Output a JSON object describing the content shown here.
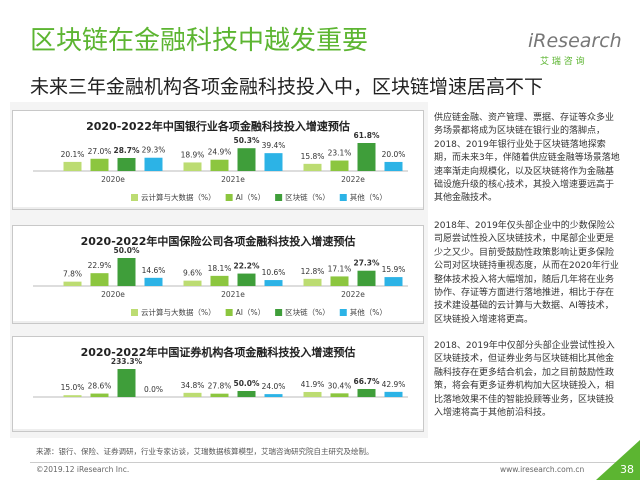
{
  "header": {
    "title": "区块链在金融科技中越发重要",
    "subtitle": "未来三年金融机构各项金融科技投入中，区块链增速居高不下",
    "logo": "iResearch",
    "logo_cn": "艾 瑞 咨 询"
  },
  "chart_data": [
    {
      "type": "bar",
      "title": "2020-2022年中国银行业各项金融科技投入增速预估",
      "categories": [
        "2020e",
        "2021e",
        "2022e"
      ],
      "legend": "bottom",
      "series": [
        {
          "name": "云计算与大数据（%）",
          "color": "#bcdc72",
          "values": [
            20.1,
            18.9,
            15.8
          ],
          "value_labels": [
            "20.1%",
            "18.9%",
            "15.8%"
          ]
        },
        {
          "name": "AI（%）",
          "color": "#8cc63f",
          "values": [
            27.0,
            24.9,
            23.1
          ],
          "value_labels": [
            "27.0%",
            "24.9%",
            "23.1%"
          ]
        },
        {
          "name": "区块链（%）",
          "color": "#3f9e3a",
          "values": [
            28.7,
            50.3,
            61.8
          ],
          "value_labels": [
            "28.7%",
            "50.3%",
            "61.8%"
          ]
        },
        {
          "name": "其他（%）",
          "color": "#2cb3e6",
          "values": [
            29.3,
            39.4,
            20.0
          ],
          "value_labels": [
            "29.3%",
            "39.4%",
            "20.0%"
          ]
        }
      ]
    },
    {
      "type": "bar",
      "title": "2020-2022年中国保险公司各项金融科技投入增速预估",
      "categories": [
        "2020e",
        "2021e",
        "2022e"
      ],
      "legend": "bottom",
      "series": [
        {
          "name": "云计算与大数据（%）",
          "color": "#bcdc72",
          "values": [
            7.8,
            9.6,
            12.8
          ],
          "value_labels": [
            "7.8%",
            "9.6%",
            "12.8%"
          ]
        },
        {
          "name": "AI（%）",
          "color": "#8cc63f",
          "values": [
            22.9,
            18.1,
            17.1
          ],
          "value_labels": [
            "22.9%",
            "18.1%",
            "17.1%"
          ]
        },
        {
          "name": "区块链（%）",
          "color": "#3f9e3a",
          "values": [
            50.0,
            22.2,
            27.3
          ],
          "value_labels": [
            "50.0%",
            "22.2%",
            "27.3%"
          ]
        },
        {
          "name": "其他（%）",
          "color": "#2cb3e6",
          "values": [
            14.6,
            10.6,
            15.9
          ],
          "value_labels": [
            "14.6%",
            "10.6%",
            "15.9%"
          ]
        }
      ]
    },
    {
      "type": "bar",
      "title": "2020-2022年中国证券机构各项金融科技投入增速预估",
      "series": [
        {
          "color": "#bcdc72",
          "values": [
            15.0,
            34.8,
            41.9
          ],
          "value_labels": [
            "15.0%",
            "34.8%",
            "41.9%"
          ]
        },
        {
          "color": "#8cc63f",
          "values": [
            28.6,
            27.8,
            30.4
          ],
          "value_labels": [
            "28.6%",
            "27.8%",
            "30.4%"
          ]
        },
        {
          "color": "#3f9e3a",
          "values": [
            233.3,
            50.0,
            66.7
          ],
          "value_labels": [
            "233.3%",
            "50.0%",
            "66.7%"
          ]
        },
        {
          "color": "#2cb3e6",
          "values": [
            0.0,
            24.0,
            42.9
          ],
          "value_labels": [
            "0.0%",
            "24.0%",
            "42.9%"
          ]
        }
      ]
    }
  ],
  "notes": [
    "供应链金融、资产管理、票据、存证等众多业务场景都将成为区块链在银行业的落脚点，2018、2019年银行业处于区块链落地探索期，而未来3年，伴随着供应链金融等场景落地速率渐走向规模化，以及区块链将作为金融基础设施升级的核心技术，其投入增速要远高于其他金融技术。",
    "2018年、2019年仅头部企业中的少数保险公司愿尝试性投入区块链技术，中尾部企业更是少之又少。目前受鼓励性政策影响让更多保险公司对区块链持重视态度，从而在2020年行业整体技术投入将大幅增加，随后几年将在业务协作、存证等方面进行落地推进，相比于存在技术建设基础的云计算与大数据、AI等技术，区块链投入增速将更高。",
    "2018、2019年中仅部分头部企业尝试性投入区块链技术，但证券业务与区块链相比其他金融科技存在更多结合机会，加之目前鼓励性政策，将会有更多证券机构加大区块链投入，相比落地效果不佳的智能投顾等业务，区块链投入增速将高于其他前沿科技。"
  ],
  "footer": {
    "source": "来源：银行、保险、证券调研，行业专家访谈，艾瑞数据核算模型，艾瑞咨询研究院自主研究及绘制。",
    "copyright": "©2019.12 iResearch Inc.",
    "url": "www.iresearch.com.cn",
    "page": "38"
  }
}
